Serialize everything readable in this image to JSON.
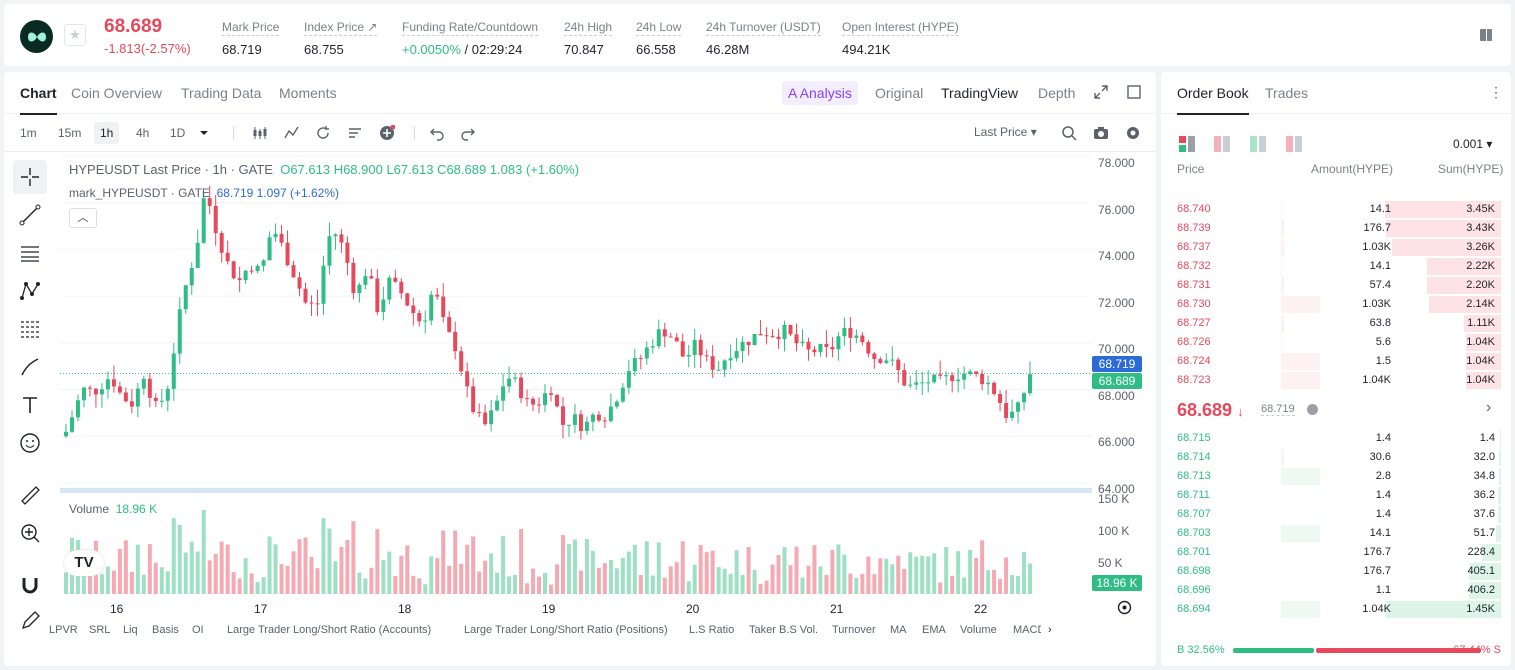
{
  "ticker": {
    "last_price": "68.689",
    "change": "-1.813(-2.57%)",
    "stats": [
      {
        "label": "Mark Price",
        "value": "68.719"
      },
      {
        "label": "Index Price ↗",
        "value": "68.755"
      },
      {
        "label": "Funding Rate/Countdown",
        "value_green": "+0.0050%",
        "value_rest": " / 02:29:24"
      },
      {
        "label": "24h High",
        "value": "70.847"
      },
      {
        "label": "24h Low",
        "value": "66.558"
      },
      {
        "label": "24h Turnover (USDT)",
        "value": "46.28M"
      },
      {
        "label": "Open Interest (HYPE)",
        "value": "494.21K"
      }
    ]
  },
  "chart_tabs": [
    "Chart",
    "Coin Overview",
    "Trading Data",
    "Moments"
  ],
  "chart_right_tabs": {
    "ai": "A Analysis",
    "original": "Original",
    "tradingview": "TradingView",
    "depth": "Depth"
  },
  "timeframes": [
    "1m",
    "15m",
    "1h",
    "4h",
    "1D"
  ],
  "price_source": "Last Price",
  "legend": {
    "main": "HYPEUSDT Last Price · 1h · GATE",
    "ohlc": "O67.613  H68.900  L67.613  C68.689  1.083 (+1.60%)",
    "mark_name": "mark_HYPEUSDT · GATE",
    "mark_vals": "68.719  1.097 (+1.62%)",
    "volume_label": "Volume",
    "volume_value": "18.96 K"
  },
  "colors": {
    "up": "#2ebd85",
    "down": "#e8485c",
    "accent_purple": "#8a3ffc"
  },
  "y_axis_labels": [
    "78.000",
    "76.000",
    "74.000",
    "72.000",
    "70.000",
    "68.000",
    "66.000",
    "64.000"
  ],
  "vol_axis_labels": [
    "150 K",
    "100 K",
    "50 K"
  ],
  "price_tags": {
    "mark": "68.719",
    "last": "68.689",
    "volume": "18.96 K"
  },
  "x_axis_labels": [
    "16",
    "17",
    "18",
    "19",
    "20",
    "21",
    "22"
  ],
  "indicators": [
    "LPVR",
    "SRL",
    "Liq",
    "Basis",
    "OI",
    "Large Trader Long/Short Ratio (Accounts)",
    "Large Trader Long/Short Ratio (Positions)",
    "L.S Ratio",
    "Taker B.S Vol.",
    "Turnover",
    "MA",
    "EMA",
    "Volume",
    "MACD"
  ],
  "orderbook": {
    "tabs": [
      "Order Book",
      "Trades"
    ],
    "precision": "0.001",
    "headers": [
      "Price",
      "Amount(HYPE)",
      "Sum(HYPE)"
    ],
    "asks": [
      {
        "price": "68.740",
        "amount": "14.1",
        "sum": "3.45K",
        "amt_frac": 0.01,
        "sum_frac": 1.0
      },
      {
        "price": "68.739",
        "amount": "176.7",
        "sum": "3.43K",
        "amt_frac": 0.02,
        "sum_frac": 0.99
      },
      {
        "price": "68.737",
        "amount": "1.03K",
        "sum": "3.26K",
        "amt_frac": 0.02,
        "sum_frac": 0.94
      },
      {
        "price": "68.732",
        "amount": "14.1",
        "sum": "2.22K",
        "amt_frac": 0.01,
        "sum_frac": 0.64
      },
      {
        "price": "68.731",
        "amount": "57.4",
        "sum": "2.20K",
        "amt_frac": 0.02,
        "sum_frac": 0.64
      },
      {
        "price": "68.730",
        "amount": "1.03K",
        "sum": "2.14K",
        "amt_frac": 0.3,
        "sum_frac": 0.62
      },
      {
        "price": "68.727",
        "amount": "63.8",
        "sum": "1.11K",
        "amt_frac": 0.02,
        "sum_frac": 0.32
      },
      {
        "price": "68.726",
        "amount": "5.6",
        "sum": "1.04K",
        "amt_frac": 0.01,
        "sum_frac": 0.3
      },
      {
        "price": "68.724",
        "amount": "1.5",
        "sum": "1.04K",
        "amt_frac": 0.3,
        "sum_frac": 0.3
      },
      {
        "price": "68.723",
        "amount": "1.04K",
        "sum": "1.04K",
        "amt_frac": 0.3,
        "sum_frac": 0.3
      }
    ],
    "mid_price": "68.689",
    "mid_mark": "68.719",
    "bids": [
      {
        "price": "68.715",
        "amount": "1.4",
        "sum": "1.4",
        "amt_frac": 0.0,
        "sum_frac": 0.01
      },
      {
        "price": "68.714",
        "amount": "30.6",
        "sum": "32.0",
        "amt_frac": 0.02,
        "sum_frac": 0.02
      },
      {
        "price": "68.713",
        "amount": "2.8",
        "sum": "34.8",
        "amt_frac": 0.3,
        "sum_frac": 0.02
      },
      {
        "price": "68.711",
        "amount": "1.4",
        "sum": "36.2",
        "amt_frac": 0.0,
        "sum_frac": 0.03
      },
      {
        "price": "68.707",
        "amount": "1.4",
        "sum": "37.6",
        "amt_frac": 0.0,
        "sum_frac": 0.03
      },
      {
        "price": "68.703",
        "amount": "14.1",
        "sum": "51.7",
        "amt_frac": 0.3,
        "sum_frac": 0.04
      },
      {
        "price": "68.701",
        "amount": "176.7",
        "sum": "228.4",
        "amt_frac": 0.0,
        "sum_frac": 0.16
      },
      {
        "price": "68.698",
        "amount": "176.7",
        "sum": "405.1",
        "amt_frac": 0.0,
        "sum_frac": 0.28
      },
      {
        "price": "68.696",
        "amount": "1.1",
        "sum": "406.2",
        "amt_frac": 0.0,
        "sum_frac": 0.28
      },
      {
        "price": "68.694",
        "amount": "1.04K",
        "sum": "1.45K",
        "amt_frac": 0.3,
        "sum_frac": 1.0
      }
    ],
    "buy_ratio": "B 32.56%",
    "sell_ratio": "67.44% S",
    "buy_frac": 0.3256
  }
}
